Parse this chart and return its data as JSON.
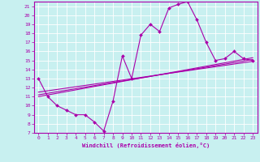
{
  "xlabel": "Windchill (Refroidissement éolien,°C)",
  "background_color": "#c8f0f0",
  "line_color": "#aa00aa",
  "xlim": [
    -0.5,
    23.5
  ],
  "ylim": [
    7,
    21.5
  ],
  "yticks": [
    7,
    8,
    9,
    10,
    11,
    12,
    13,
    14,
    15,
    16,
    17,
    18,
    19,
    20,
    21
  ],
  "xticks": [
    0,
    1,
    2,
    3,
    4,
    5,
    6,
    7,
    8,
    9,
    10,
    11,
    12,
    13,
    14,
    15,
    16,
    17,
    18,
    19,
    20,
    21,
    22,
    23
  ],
  "main_x": [
    0,
    1,
    2,
    3,
    4,
    5,
    6,
    7,
    8,
    9,
    10,
    11,
    12,
    13,
    14,
    15,
    16,
    17,
    18,
    19,
    20,
    21,
    22,
    23
  ],
  "main_y": [
    13,
    11,
    10,
    9.5,
    9,
    9,
    8.2,
    7.2,
    10.5,
    15.5,
    13,
    17.8,
    19,
    18.2,
    20.8,
    21.2,
    21.5,
    19.5,
    17,
    15,
    15.2,
    16,
    15.2,
    15
  ],
  "trend1_x": [
    0,
    23
  ],
  "trend1_y": [
    11.2,
    15.1
  ],
  "trend2_x": [
    0,
    23
  ],
  "trend2_y": [
    11.5,
    14.9
  ],
  "trend3_x": [
    0,
    23
  ],
  "trend3_y": [
    11.0,
    15.3
  ]
}
